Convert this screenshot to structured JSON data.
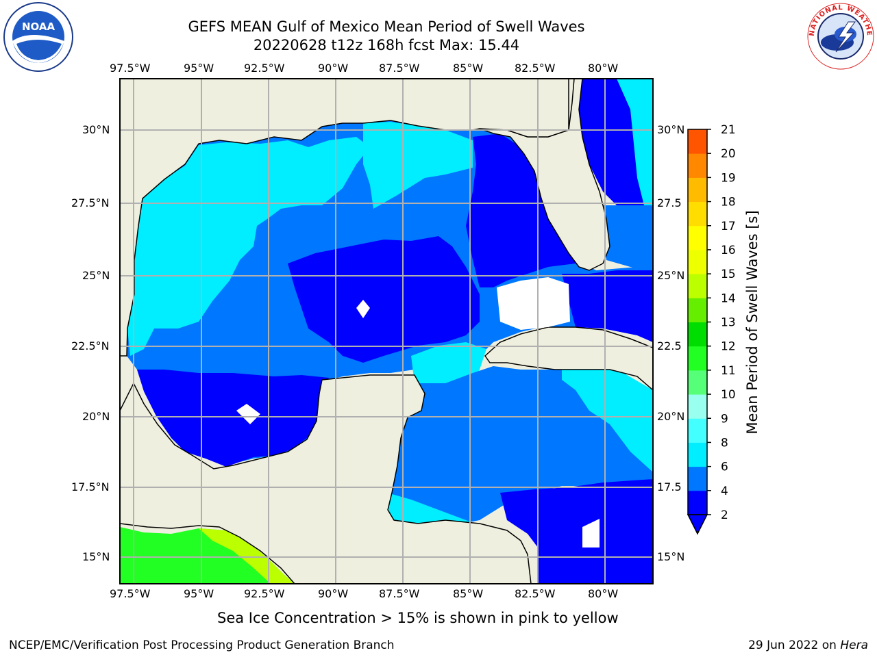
{
  "header": {
    "title_line1": "GEFS MEAN Gulf of Mexico Mean Period of Swell Waves",
    "title_line2": "20220628 t12z 168h fcst   Max: 15.44"
  },
  "map": {
    "lon_labels": [
      "97.5°W",
      "95°W",
      "92.5°W",
      "90°W",
      "87.5°W",
      "85°W",
      "82.5°W",
      "80°W"
    ],
    "lat_labels": [
      "30°N",
      "27.5°N",
      "25°N",
      "22.5°N",
      "20°N",
      "17.5°N",
      "15°N"
    ],
    "lon_labels_right_clipped": [
      "30°N",
      "27.5",
      "25°N",
      "22.5",
      "20°N",
      "17.5",
      "15°N"
    ]
  },
  "colorbar": {
    "label": "Mean Period of Swell Waves [s]",
    "ticks": [
      "2",
      "4",
      "6",
      "8",
      "9",
      "10",
      "11",
      "12",
      "13",
      "14",
      "15",
      "16",
      "17",
      "18",
      "19",
      "20",
      "21"
    ],
    "colors": [
      "#0000ff",
      "#0077ff",
      "#00eeff",
      "#44ffff",
      "#99ffee",
      "#55ff77",
      "#22ff22",
      "#00dd00",
      "#66ee00",
      "#bbff00",
      "#eeff00",
      "#ffff00",
      "#ffdd00",
      "#ffbb00",
      "#ff8800",
      "#ff5500",
      "#ff2200",
      "#ff0000"
    ]
  },
  "colors": {
    "land": "#efefdf",
    "ocean_low": "#0000ff",
    "ocean_mid": "#0077ff",
    "ocean_high": "#00eeff",
    "grid": "#b0b0b0"
  },
  "footer": {
    "sea_ice_note": "Sea Ice Concentration > 15% is shown in pink to yellow",
    "credit": "NCEP/EMC/Verification Post Processing Product Generation Branch",
    "date_prefix": "29 Jun 2022 on ",
    "machine": "Hera"
  },
  "logos": {
    "noaa_text": "NOAA",
    "nws_text": "NATIONAL WEATHER SERVICE"
  }
}
